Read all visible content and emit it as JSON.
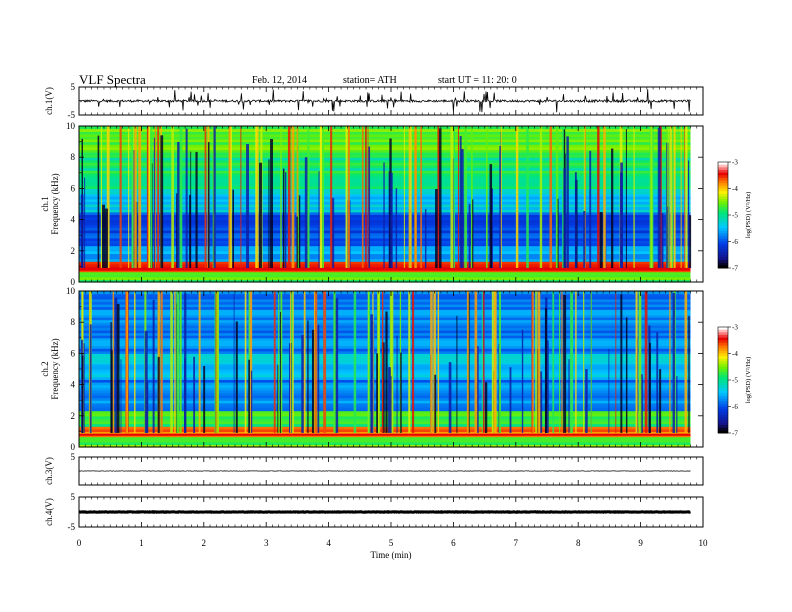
{
  "header": {
    "title": "VLF  Spectra",
    "date": "Feb. 12, 2014",
    "station": "station= ATH",
    "start": "start  UT  =    11: 20: 0"
  },
  "chart_data": [
    {
      "type": "line",
      "panel": "ch1-waveform",
      "ylabel": "ch.1(V)",
      "yticks": [
        5,
        -5
      ],
      "ylim": [
        -5,
        5
      ],
      "xlim": [
        0,
        10
      ],
      "baseline_value": 0,
      "noise_amplitude": 0.8,
      "spike_amplitude": 4,
      "data_end": 9.8,
      "color": "#000000"
    },
    {
      "type": "heatmap",
      "panel": "ch1-spectrogram",
      "ylabel": "Frequency  (kHz)",
      "channel_label": "ch.1",
      "yticks": [
        0,
        2,
        4,
        6,
        8,
        10
      ],
      "ylim": [
        0,
        10
      ],
      "xlim": [
        0,
        10
      ],
      "data_end": 9.8,
      "colorbar": {
        "label": "log(PSD) (V²/Hz)",
        "ticks": [
          -3,
          -4,
          -5,
          -6,
          -7
        ],
        "range": [
          -7,
          -3
        ]
      }
    },
    {
      "type": "heatmap",
      "panel": "ch2-spectrogram",
      "ylabel": "Frequency  (kHz)",
      "channel_label": "ch.2",
      "yticks": [
        0,
        2,
        4,
        6,
        8,
        10
      ],
      "ylim": [
        0,
        10
      ],
      "xlim": [
        0,
        10
      ],
      "data_end": 9.8,
      "colorbar": {
        "label": "log(PSD) (V²/Hz)",
        "ticks": [
          -3,
          -4,
          -5,
          -6,
          -7
        ],
        "range": [
          -7,
          -3
        ]
      }
    },
    {
      "type": "line",
      "panel": "ch3-waveform",
      "ylabel": "ch.3(V)",
      "yticks": [
        5
      ],
      "ylim": [
        -5,
        5
      ],
      "xlim": [
        0,
        10
      ],
      "baseline_value": 0,
      "data_end": 9.8,
      "color": "#000000"
    },
    {
      "type": "line",
      "panel": "ch4-waveform",
      "ylabel": "ch.4(V)",
      "yticks": [
        5,
        -5
      ],
      "ylim": [
        -5,
        5
      ],
      "xlim": [
        0,
        10
      ],
      "baseline_value": 0,
      "data_end": 9.8,
      "color": "#000000"
    }
  ],
  "xaxis": {
    "label": "Time  (min)",
    "ticks": [
      0,
      1,
      2,
      3,
      4,
      5,
      6,
      7,
      8,
      9,
      10
    ],
    "range": [
      0,
      10
    ]
  }
}
